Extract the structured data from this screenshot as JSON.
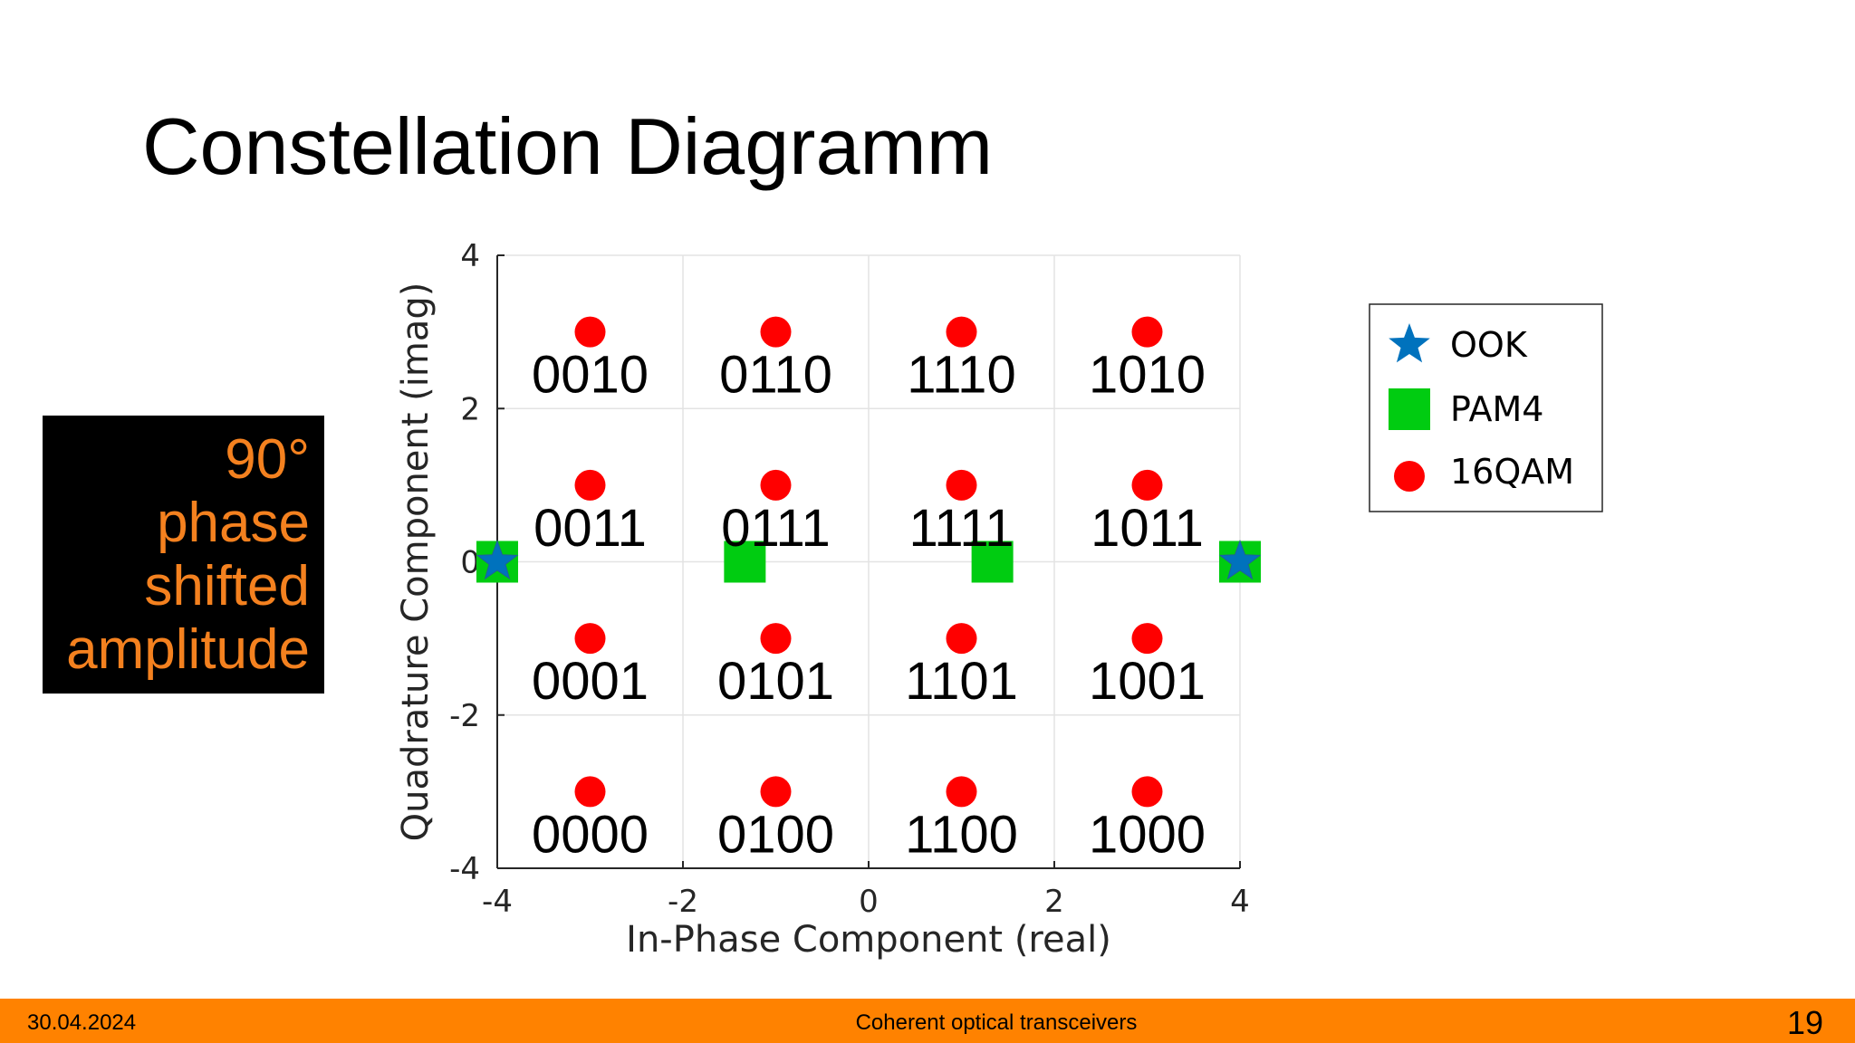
{
  "slide": {
    "title": "Constellation Diagramm",
    "callout_lines": [
      "90°",
      "phase",
      "shifted",
      "amplitude"
    ],
    "callout_bg": "#000000",
    "callout_color": "#f4811f"
  },
  "footer": {
    "date": "30.04.2024",
    "center_text": "Coherent optical transceivers",
    "page_number": "19",
    "bg_color": "#ff8200"
  },
  "chart_data": {
    "type": "scatter",
    "title": "",
    "xlabel": "In-Phase Component (real)",
    "ylabel": "Quadrature Component (imag)",
    "xlim": [
      -4,
      4
    ],
    "ylim": [
      -4,
      4
    ],
    "xticks": [
      -4,
      -2,
      0,
      2,
      4
    ],
    "yticks": [
      -4,
      -2,
      0,
      2,
      4
    ],
    "grid": true,
    "legend_position": "right",
    "series": [
      {
        "name": "OOK",
        "marker": "star",
        "color": "#0072bd",
        "points": [
          {
            "x": -4,
            "y": 0
          },
          {
            "x": 4,
            "y": 0
          }
        ]
      },
      {
        "name": "PAM4",
        "marker": "square",
        "color": "#00cc11",
        "points": [
          {
            "x": -4,
            "y": 0
          },
          {
            "x": -1.333,
            "y": 0
          },
          {
            "x": 1.333,
            "y": 0
          },
          {
            "x": 4,
            "y": 0
          }
        ]
      },
      {
        "name": "16QAM",
        "marker": "circle",
        "color": "#ff0000",
        "points": [
          {
            "x": -3,
            "y": 3,
            "label": "0010"
          },
          {
            "x": -1,
            "y": 3,
            "label": "0110"
          },
          {
            "x": 1,
            "y": 3,
            "label": "1110"
          },
          {
            "x": 3,
            "y": 3,
            "label": "1010"
          },
          {
            "x": -3,
            "y": 1,
            "label": "0011"
          },
          {
            "x": -1,
            "y": 1,
            "label": "0111"
          },
          {
            "x": 1,
            "y": 1,
            "label": "1111"
          },
          {
            "x": 3,
            "y": 1,
            "label": "1011"
          },
          {
            "x": -3,
            "y": -1,
            "label": "0001"
          },
          {
            "x": -1,
            "y": -1,
            "label": "0101"
          },
          {
            "x": 1,
            "y": -1,
            "label": "1101"
          },
          {
            "x": 3,
            "y": -1,
            "label": "1001"
          },
          {
            "x": -3,
            "y": -3,
            "label": "0000"
          },
          {
            "x": -1,
            "y": -3,
            "label": "0100"
          },
          {
            "x": 1,
            "y": -3,
            "label": "1100"
          },
          {
            "x": 3,
            "y": -3,
            "label": "1000"
          }
        ]
      }
    ]
  }
}
